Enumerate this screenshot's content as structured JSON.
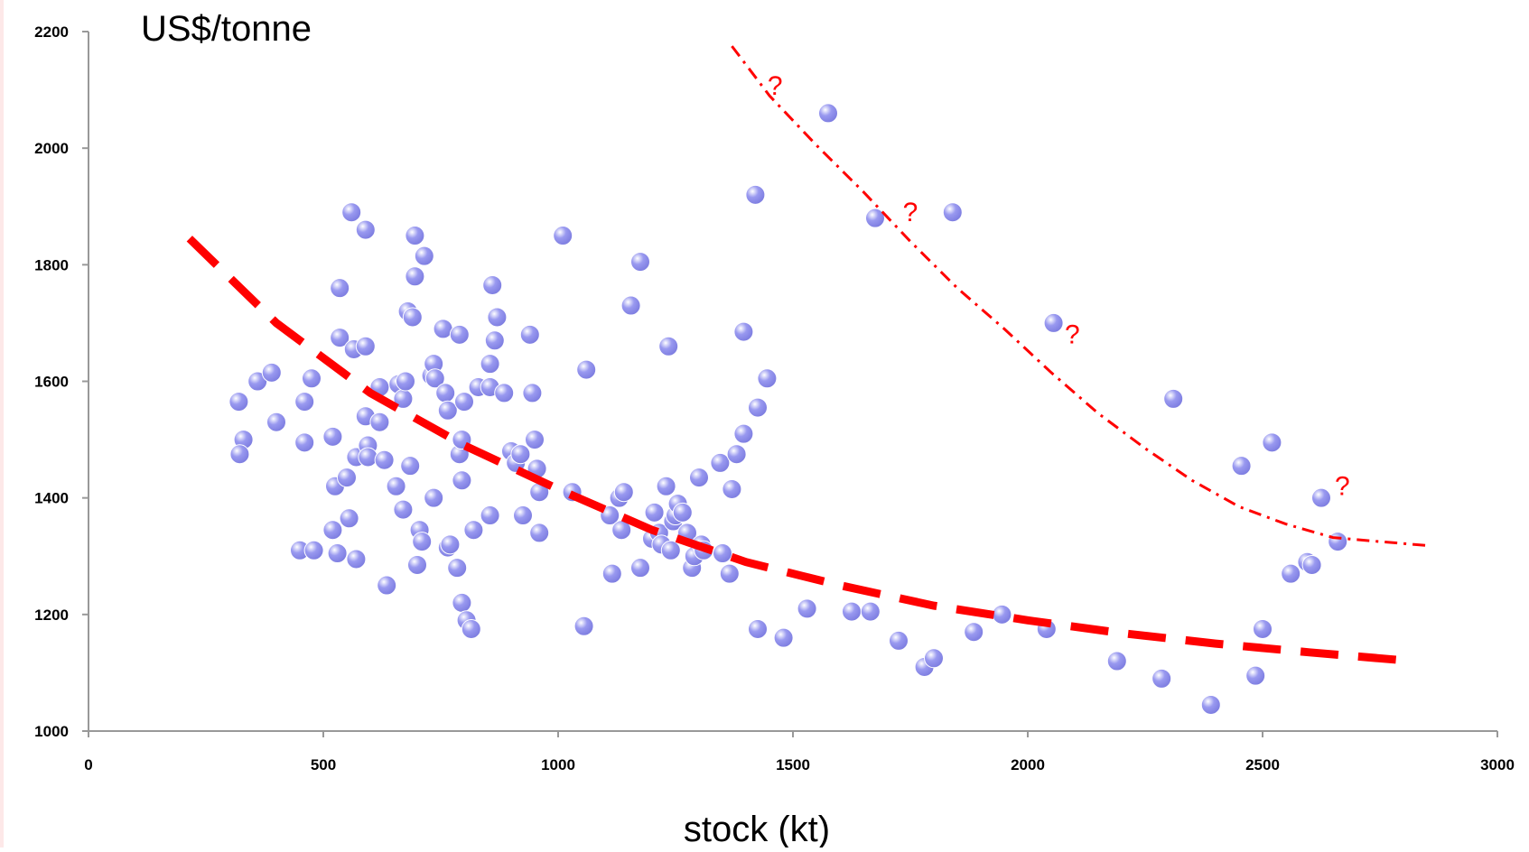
{
  "chart_data": {
    "type": "scatter",
    "title": "",
    "ylabel": "US$/tonne",
    "xlabel": "stock (kt)",
    "xlim": [
      0,
      3000
    ],
    "ylim": [
      1000,
      2200
    ],
    "xticks": [
      0,
      500,
      1000,
      1500,
      2000,
      2500,
      3000
    ],
    "yticks": [
      1000,
      1200,
      1400,
      1600,
      1800,
      2000,
      2200
    ],
    "grid": false,
    "legend": "none",
    "series": [
      {
        "marker": "circle",
        "color": "#9999f0",
        "points": [
          [
            320,
            1565
          ],
          [
            330,
            1500
          ],
          [
            322,
            1475
          ],
          [
            360,
            1600
          ],
          [
            390,
            1615
          ],
          [
            400,
            1530
          ],
          [
            450,
            1310
          ],
          [
            460,
            1495
          ],
          [
            460,
            1565
          ],
          [
            475,
            1605
          ],
          [
            480,
            1310
          ],
          [
            520,
            1505
          ],
          [
            525,
            1420
          ],
          [
            520,
            1345
          ],
          [
            530,
            1305
          ],
          [
            535,
            1760
          ],
          [
            535,
            1675
          ],
          [
            550,
            1435
          ],
          [
            555,
            1365
          ],
          [
            560,
            1890
          ],
          [
            565,
            1655
          ],
          [
            570,
            1470
          ],
          [
            570,
            1295
          ],
          [
            590,
            1860
          ],
          [
            590,
            1660
          ],
          [
            590,
            1540
          ],
          [
            595,
            1490
          ],
          [
            595,
            1470
          ],
          [
            620,
            1590
          ],
          [
            620,
            1530
          ],
          [
            630,
            1465
          ],
          [
            635,
            1250
          ],
          [
            655,
            1420
          ],
          [
            660,
            1595
          ],
          [
            670,
            1570
          ],
          [
            670,
            1380
          ],
          [
            675,
            1600
          ],
          [
            680,
            1720
          ],
          [
            685,
            1455
          ],
          [
            690,
            1710
          ],
          [
            695,
            1850
          ],
          [
            695,
            1780
          ],
          [
            700,
            1285
          ],
          [
            705,
            1345
          ],
          [
            710,
            1325
          ],
          [
            715,
            1815
          ],
          [
            730,
            1610
          ],
          [
            735,
            1630
          ],
          [
            738,
            1605
          ],
          [
            735,
            1400
          ],
          [
            755,
            1690
          ],
          [
            760,
            1580
          ],
          [
            765,
            1315
          ],
          [
            765,
            1550
          ],
          [
            770,
            1320
          ],
          [
            785,
            1280
          ],
          [
            790,
            1680
          ],
          [
            790,
            1475
          ],
          [
            795,
            1500
          ],
          [
            795,
            1430
          ],
          [
            800,
            1565
          ],
          [
            795,
            1220
          ],
          [
            805,
            1190
          ],
          [
            815,
            1175
          ],
          [
            820,
            1345
          ],
          [
            830,
            1590
          ],
          [
            855,
            1630
          ],
          [
            855,
            1370
          ],
          [
            855,
            1590
          ],
          [
            860,
            1765
          ],
          [
            865,
            1670
          ],
          [
            870,
            1710
          ],
          [
            885,
            1580
          ],
          [
            900,
            1480
          ],
          [
            910,
            1460
          ],
          [
            920,
            1475
          ],
          [
            925,
            1370
          ],
          [
            940,
            1680
          ],
          [
            945,
            1580
          ],
          [
            950,
            1500
          ],
          [
            955,
            1450
          ],
          [
            960,
            1410
          ],
          [
            960,
            1340
          ],
          [
            1010,
            1850
          ],
          [
            1030,
            1410
          ],
          [
            1055,
            1180
          ],
          [
            1060,
            1620
          ],
          [
            1110,
            1370
          ],
          [
            1115,
            1270
          ],
          [
            1130,
            1400
          ],
          [
            1135,
            1345
          ],
          [
            1140,
            1410
          ],
          [
            1155,
            1730
          ],
          [
            1175,
            1805
          ],
          [
            1175,
            1280
          ],
          [
            1200,
            1330
          ],
          [
            1205,
            1375
          ],
          [
            1215,
            1340
          ],
          [
            1220,
            1320
          ],
          [
            1230,
            1420
          ],
          [
            1235,
            1660
          ],
          [
            1240,
            1310
          ],
          [
            1245,
            1360
          ],
          [
            1250,
            1370
          ],
          [
            1255,
            1390
          ],
          [
            1265,
            1375
          ],
          [
            1275,
            1340
          ],
          [
            1285,
            1280
          ],
          [
            1290,
            1300
          ],
          [
            1300,
            1435
          ],
          [
            1305,
            1320
          ],
          [
            1310,
            1310
          ],
          [
            1345,
            1460
          ],
          [
            1350,
            1305
          ],
          [
            1365,
            1270
          ],
          [
            1370,
            1415
          ],
          [
            1380,
            1475
          ],
          [
            1395,
            1510
          ],
          [
            1395,
            1685
          ],
          [
            1420,
            1920
          ],
          [
            1425,
            1555
          ],
          [
            1425,
            1175
          ],
          [
            1445,
            1605
          ],
          [
            1480,
            1160
          ],
          [
            1530,
            1210
          ],
          [
            1575,
            2060
          ],
          [
            1625,
            1205
          ],
          [
            1665,
            1205
          ],
          [
            1675,
            1880
          ],
          [
            1725,
            1155
          ],
          [
            1780,
            1110
          ],
          [
            1800,
            1125
          ],
          [
            1840,
            1890
          ],
          [
            1885,
            1170
          ],
          [
            1945,
            1200
          ],
          [
            2040,
            1175
          ],
          [
            2055,
            1700
          ],
          [
            2190,
            1120
          ],
          [
            2285,
            1090
          ],
          [
            2310,
            1570
          ],
          [
            2390,
            1045
          ],
          [
            2455,
            1455
          ],
          [
            2485,
            1095
          ],
          [
            2500,
            1175
          ],
          [
            2520,
            1495
          ],
          [
            2560,
            1270
          ],
          [
            2595,
            1290
          ],
          [
            2605,
            1285
          ],
          [
            2625,
            1400
          ],
          [
            2660,
            1325
          ]
        ]
      }
    ],
    "curves": [
      {
        "style": "dashed",
        "color": "#ff0000",
        "points": [
          [
            215,
            1845
          ],
          [
            400,
            1700
          ],
          [
            600,
            1580
          ],
          [
            800,
            1490
          ],
          [
            1000,
            1415
          ],
          [
            1200,
            1345
          ],
          [
            1400,
            1290
          ],
          [
            1600,
            1250
          ],
          [
            1800,
            1215
          ],
          [
            2000,
            1190
          ],
          [
            2200,
            1168
          ],
          [
            2400,
            1150
          ],
          [
            2600,
            1135
          ],
          [
            2790,
            1122
          ]
        ]
      },
      {
        "style": "dash-dot",
        "color": "#ff0000",
        "points": [
          [
            1370,
            2175
          ],
          [
            1450,
            2090
          ],
          [
            1550,
            2005
          ],
          [
            1650,
            1925
          ],
          [
            1750,
            1840
          ],
          [
            1850,
            1760
          ],
          [
            1950,
            1690
          ],
          [
            2050,
            1615
          ],
          [
            2150,
            1545
          ],
          [
            2250,
            1485
          ],
          [
            2350,
            1430
          ],
          [
            2450,
            1385
          ],
          [
            2550,
            1355
          ],
          [
            2650,
            1332
          ],
          [
            2750,
            1325
          ],
          [
            2855,
            1318
          ]
        ]
      }
    ],
    "annotations": [
      {
        "text": "?",
        "x": 1462,
        "y": 2092,
        "color": "#ff0000"
      },
      {
        "text": "?",
        "x": 1750,
        "y": 1875,
        "color": "#ff0000"
      },
      {
        "text": "?",
        "x": 2095,
        "y": 1665,
        "color": "#ff0000"
      },
      {
        "text": "?",
        "x": 2670,
        "y": 1405,
        "color": "#ff0000"
      }
    ],
    "axis_color": "#999999",
    "edge_color": "#fde8e8"
  }
}
